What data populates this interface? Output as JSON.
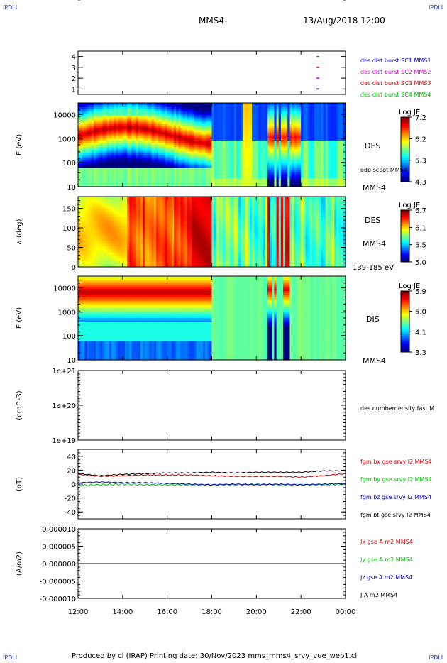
{
  "corner_labels": {
    "top_left": "IPDLI",
    "top_right": "IPDLI",
    "bottom_left": "IPDLI",
    "bottom_right": "IPDLI"
  },
  "header": {
    "mission": "MMS4",
    "datetime": "13/Aug/2018 12:00"
  },
  "footer": "Produced by cl (IRAP)   Printing date: 30/Nov/2023   mms_mms4_srvy_vue_web1.cl",
  "colors": {
    "mms1": "#0000cc",
    "mms2": "#cc00cc",
    "mms3": "#cc0000",
    "mms4": "#00bb00",
    "bx": "#cc0000",
    "by": "#00bb00",
    "bz": "#0000cc",
    "bt": "#000000"
  },
  "chart_data": [
    {
      "type": "scatter",
      "panel": "spacecraft-indicator",
      "yticks": [
        "1",
        "2",
        "3",
        "4"
      ],
      "ylim": [
        0.5,
        4.5
      ],
      "legend": [
        "des dist burst SC1 MMS1",
        "des dist burst SC2 MMS2",
        "des dist burst SC3 MMS3",
        "des dist burst SC4 MMS4"
      ],
      "markers": [
        {
          "sc": 4,
          "x": "22:45"
        },
        {
          "sc": 3,
          "x": "22:45"
        },
        {
          "sc": 2,
          "x": "22:45"
        },
        {
          "sc": 1,
          "x": "22:45"
        }
      ]
    },
    {
      "type": "heatmap",
      "panel": "des-energy-spectrogram",
      "ylabel": "E (eV)",
      "yticks": [
        "10",
        "100",
        "1000",
        "10000"
      ],
      "scale": "log",
      "colorbar": {
        "title": "Log JE",
        "ticks": [
          "7.2",
          "6.2",
          "5.3",
          "4.3"
        ]
      },
      "labels": [
        "DES",
        "edp scpot MMS4",
        "MMS4"
      ]
    },
    {
      "type": "heatmap",
      "panel": "des-pitch-angle",
      "ylabel": "a (deg)",
      "yticks": [
        "0",
        "50",
        "100",
        "150"
      ],
      "ylim": [
        0,
        180
      ],
      "colorbar": {
        "title": "Log JE",
        "ticks": [
          "6.7",
          "6.1",
          "5.5",
          "5.0"
        ]
      },
      "labels": [
        "DES",
        "MMS4",
        "139-185 eV"
      ]
    },
    {
      "type": "heatmap",
      "panel": "dis-energy-spectrogram",
      "ylabel": "E (eV)",
      "yticks": [
        "10",
        "100",
        "1000",
        "10000"
      ],
      "scale": "log",
      "colorbar": {
        "title": "Log JE",
        "ticks": [
          "5.9",
          "5.0",
          "4.1",
          "3.3"
        ]
      },
      "labels": [
        "DIS",
        "MMS4"
      ]
    },
    {
      "type": "line",
      "panel": "density",
      "ylabel": "(cm^-3)",
      "yticks": [
        "1e+19",
        "1e+20",
        "1e+21"
      ],
      "scale": "log",
      "legend": [
        "des numberdensity fast M"
      ],
      "series": []
    },
    {
      "type": "line",
      "panel": "magnetic-field",
      "ylabel": "(nT)",
      "yticks": [
        "-40",
        "-20",
        "0",
        "20",
        "40"
      ],
      "ylim": [
        -50,
        50
      ],
      "x": [
        "12:00",
        "13:00",
        "14:00",
        "15:00",
        "16:00",
        "17:00",
        "18:00",
        "19:00",
        "20:00",
        "21:00",
        "22:00",
        "23:00",
        "00:00"
      ],
      "series": [
        {
          "name": "fgm bx gse srvy l2 MMS4",
          "values": [
            14,
            11,
            12,
            13,
            13,
            13,
            12,
            11,
            11,
            11,
            10,
            12,
            15
          ]
        },
        {
          "name": "fgm by gse srvy l2 MMS4",
          "values": [
            -2,
            -1,
            0,
            -1,
            -1,
            -1,
            -1,
            -1,
            0,
            -1,
            -1,
            -1,
            0
          ]
        },
        {
          "name": "fgm bz gse srvy l2 MMS4",
          "values": [
            2,
            3,
            2,
            2,
            1,
            0,
            -1,
            0,
            -1,
            0,
            -1,
            0,
            1
          ]
        },
        {
          "name": "fgm bt gse srvy l2 MMS4",
          "values": [
            15,
            12,
            14,
            15,
            16,
            16,
            17,
            16,
            17,
            17,
            17,
            19,
            19
          ]
        }
      ]
    },
    {
      "type": "line",
      "panel": "current-density",
      "ylabel": "(A/m2)",
      "yticks": [
        "-0.000010",
        "-0.000005",
        "0.000000",
        "0.000005",
        "0.000010"
      ],
      "ylim": [
        -1e-05,
        1e-05
      ],
      "legend": [
        "Jx gse A m2 MMS4",
        "Jy gse A m2 MMS4",
        "Jz gse A m2 MMS4",
        "J A m2 MMS4"
      ],
      "series": [
        {
          "name": "J A m2 MMS4",
          "values": [
            0,
            0,
            0,
            0,
            0,
            0,
            0,
            0,
            0,
            0,
            0,
            0,
            0
          ]
        }
      ]
    }
  ],
  "time_axis": [
    "12:00",
    "14:00",
    "16:00",
    "18:00",
    "20:00",
    "22:00",
    "00:00"
  ]
}
